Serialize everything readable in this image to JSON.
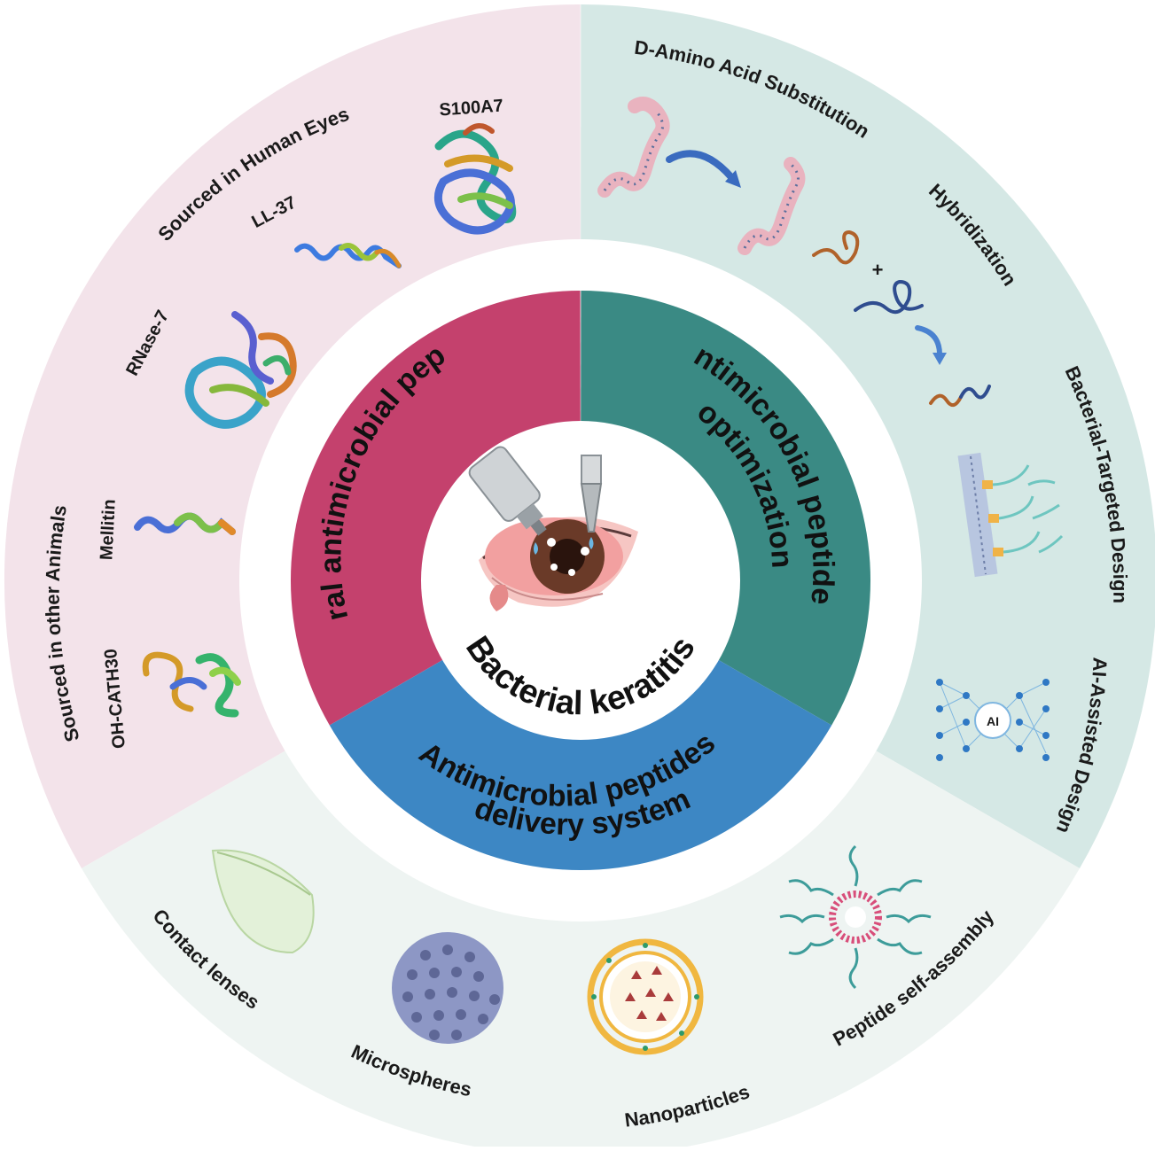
{
  "center": {
    "title": "Bacterial keratitis"
  },
  "inner_ring": {
    "natural": {
      "label": "Natural antimicrobial peptides",
      "color": "#c4416d"
    },
    "optimization": {
      "label_line1": "Antimicrobial peptides",
      "label_line2": "optimization",
      "color": "#3a8a84"
    },
    "delivery": {
      "label_line1": "Antimicrobial peptides",
      "label_line2": "delivery system",
      "color": "#3d87c4"
    }
  },
  "outer_ring": {
    "natural": {
      "color": "#f3e3ea",
      "group_human": "Sourced in Human Eyes",
      "group_animals": "Sourced in other Animals",
      "peptides": [
        "S100A7",
        "LL-37",
        "RNase-7",
        "Mellitin",
        "OH-CATH30"
      ]
    },
    "optimization": {
      "color": "#d5e8e5",
      "strategies": [
        "D-Amino Acid Substitution",
        "Hybridization",
        "Bacterial-Targeted Design",
        "AI-Assisted Design"
      ],
      "ai_badge": "AI",
      "plus_sign": "+"
    },
    "delivery": {
      "color": "#eef4f2",
      "systems": [
        "Contact lenses",
        "Microspheres",
        "Nanoparticles",
        "Peptide self-assembly"
      ]
    }
  }
}
